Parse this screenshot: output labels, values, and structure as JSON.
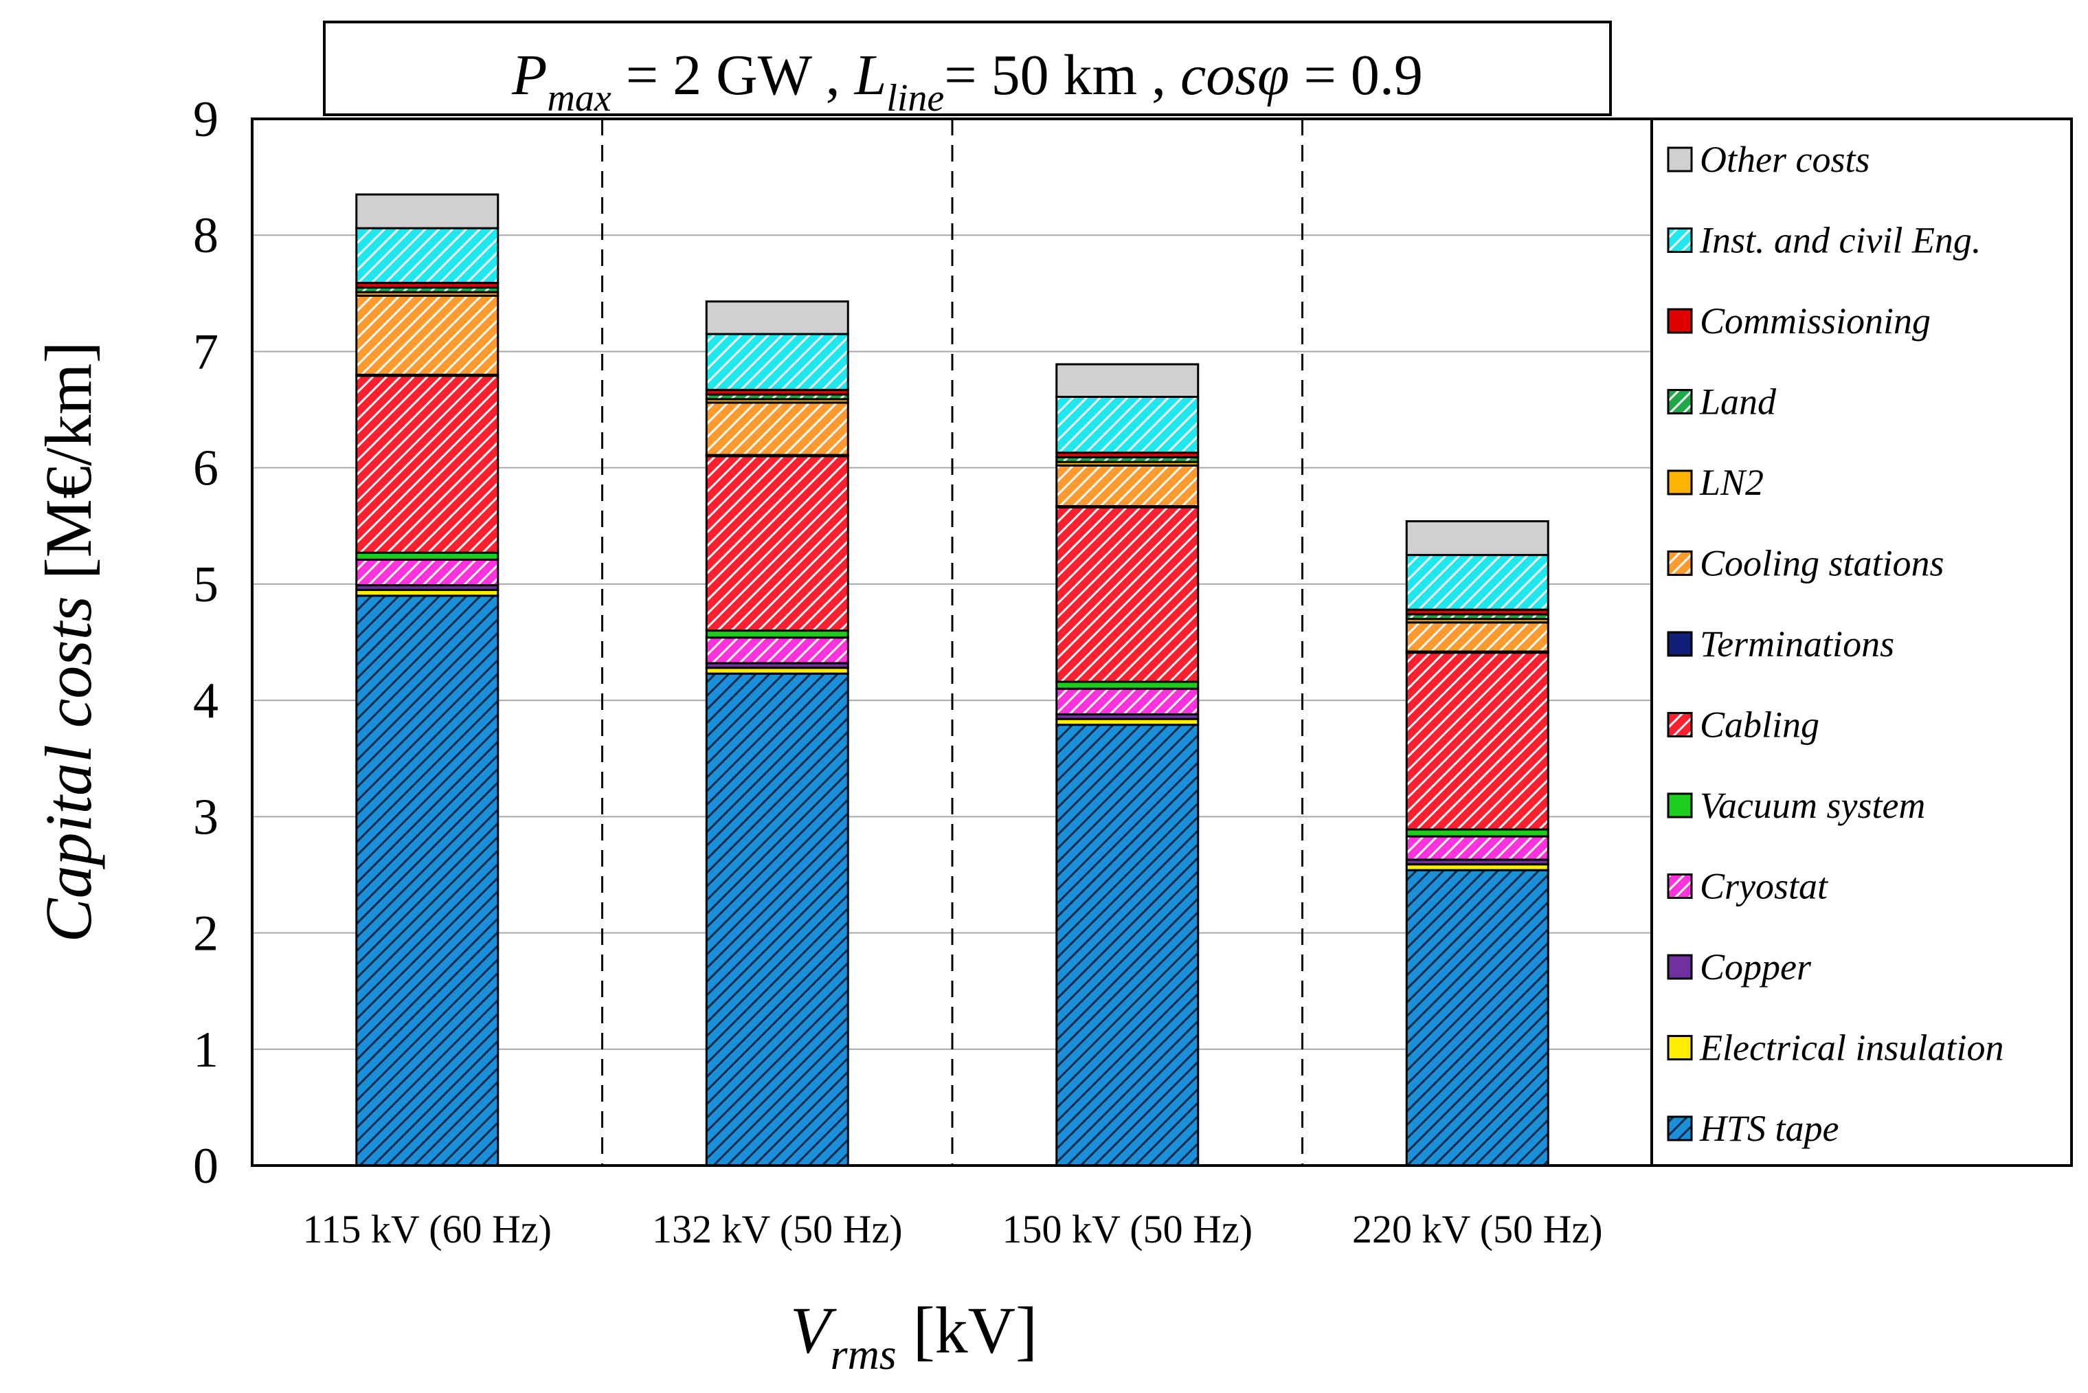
{
  "chart_data": {
    "type": "bar",
    "stacked": true,
    "title": {
      "p_sym": "P",
      "p_sub": "max",
      "p_val": " = 2 GW",
      "sep1": " ,  ",
      "l_sym": "L",
      "l_sub": "line",
      "l_val": "= 50 km",
      "sep2": " ,  ",
      "c_sym": "cosφ",
      "c_val": " = 0.9"
    },
    "ylabel_italic": "Capital costs",
    "ylabel_unit": " [M€/km]",
    "xlabel_sym": "V",
    "xlabel_sub": "rms",
    "xlabel_unit": " [kV]",
    "ylim": [
      0,
      9
    ],
    "yticks": [
      "0",
      "1",
      "2",
      "3",
      "4",
      "5",
      "6",
      "7",
      "8",
      "9"
    ],
    "grid": true,
    "legend_position": "right",
    "categories": [
      "115 kV (60 Hz)",
      "132 kV (50 Hz)",
      "150 kV (50 Hz)",
      "220 kV (50 Hz)"
    ],
    "series": [
      {
        "name": "HTS tape",
        "color": "#1b8fd8",
        "hatch": "dark",
        "values": [
          4.9,
          4.23,
          3.79,
          2.54
        ]
      },
      {
        "name": "Electrical insulation",
        "color": "#ffee00",
        "hatch": "none",
        "values": [
          0.05,
          0.05,
          0.05,
          0.05
        ]
      },
      {
        "name": "Copper",
        "color": "#7030a0",
        "hatch": "none",
        "values": [
          0.04,
          0.04,
          0.04,
          0.04
        ]
      },
      {
        "name": "Cryostat",
        "color": "#ff33dd",
        "hatch": "white",
        "values": [
          0.22,
          0.22,
          0.22,
          0.2
        ]
      },
      {
        "name": "Vacuum system",
        "color": "#1ecc1e",
        "hatch": "none",
        "values": [
          0.06,
          0.06,
          0.06,
          0.06
        ]
      },
      {
        "name": "Cabling",
        "color": "#ff1f2e",
        "hatch": "white",
        "values": [
          1.52,
          1.5,
          1.5,
          1.52
        ]
      },
      {
        "name": "Terminations",
        "color": "#10207a",
        "hatch": "none",
        "values": [
          0.01,
          0.01,
          0.01,
          0.01
        ]
      },
      {
        "name": "Cooling stations",
        "color": "#ff9a2e",
        "hatch": "white",
        "values": [
          0.68,
          0.45,
          0.35,
          0.25
        ]
      },
      {
        "name": "LN2",
        "color": "#ffb300",
        "hatch": "none",
        "values": [
          0.03,
          0.03,
          0.03,
          0.03
        ]
      },
      {
        "name": "Land",
        "color": "#1fa84a",
        "hatch": "white",
        "values": [
          0.04,
          0.04,
          0.04,
          0.04
        ]
      },
      {
        "name": "Commissioning",
        "color": "#e00000",
        "hatch": "none",
        "values": [
          0.04,
          0.04,
          0.04,
          0.04
        ]
      },
      {
        "name": "Inst. and civil Eng.",
        "color": "#1ee8ee",
        "hatch": "white",
        "values": [
          0.47,
          0.48,
          0.48,
          0.47
        ]
      },
      {
        "name": "Other costs",
        "color": "#d0d0d0",
        "hatch": "none",
        "values": [
          0.29,
          0.28,
          0.28,
          0.29
        ]
      }
    ]
  }
}
